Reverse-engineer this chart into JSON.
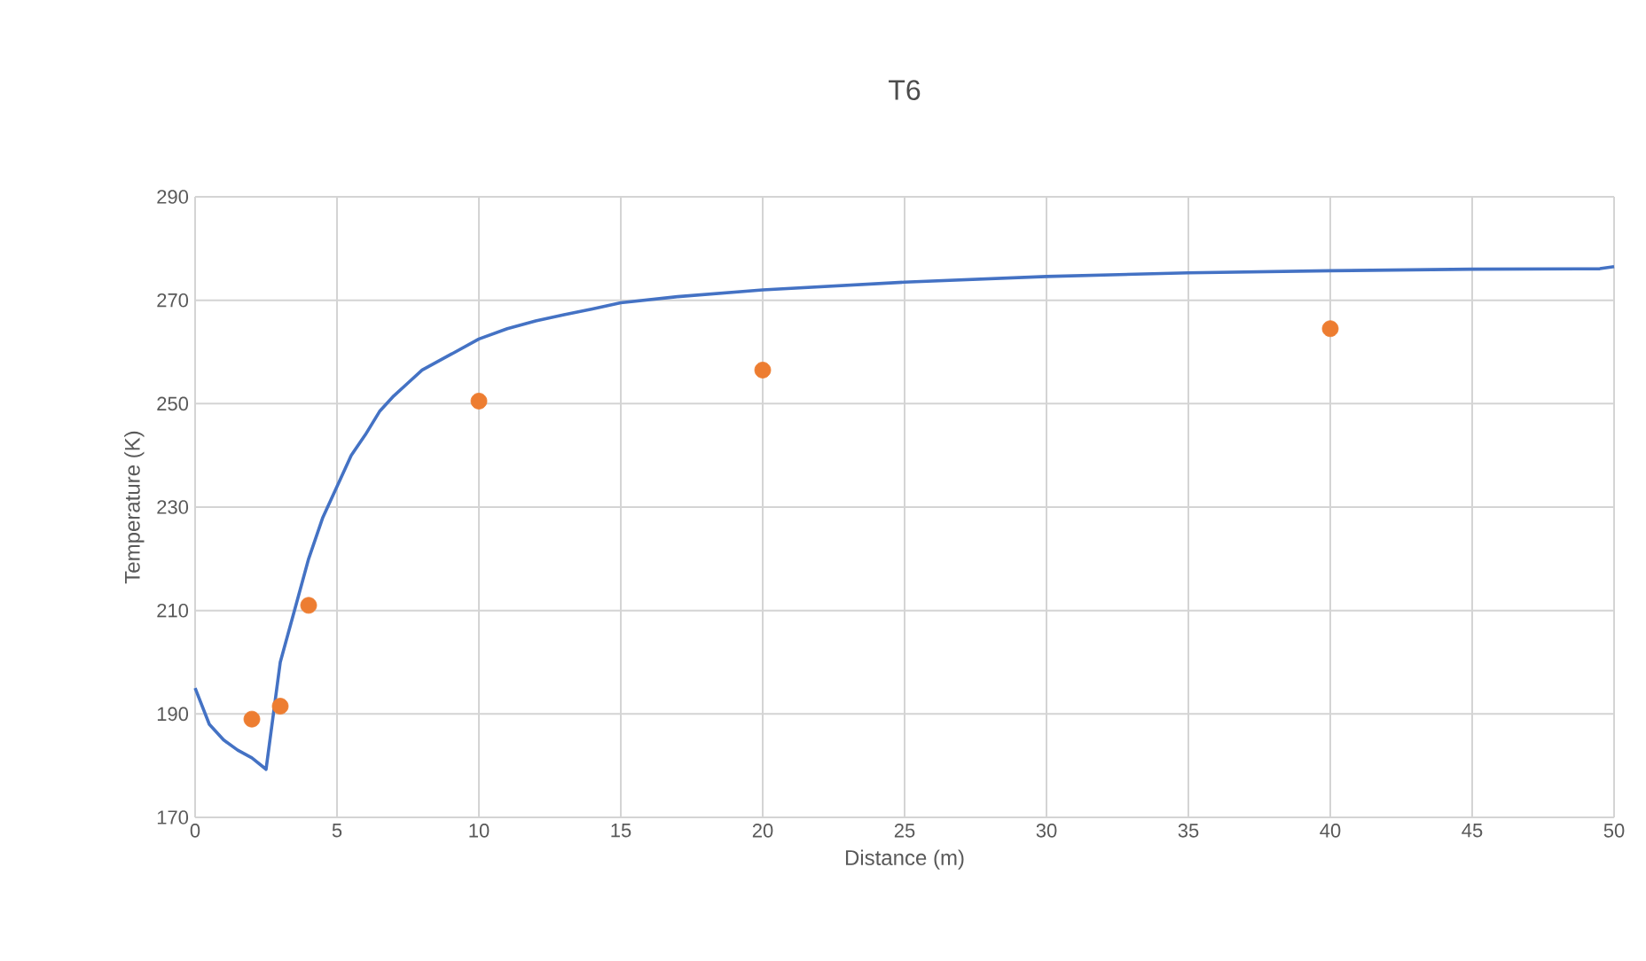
{
  "chart_data": {
    "type": "line",
    "title": "T6",
    "xlabel": "Distance (m)",
    "ylabel": "Temperature (K)",
    "xlim": [
      0,
      50
    ],
    "xticks": [
      0,
      5,
      10,
      15,
      20,
      25,
      30,
      35,
      40,
      45,
      50
    ],
    "ylim": [
      170,
      290
    ],
    "yticks": [
      170,
      190,
      210,
      230,
      250,
      270,
      290
    ],
    "grid": true,
    "series": [
      {
        "color": "#4472c4",
        "marker": "none",
        "x": [
          0,
          0.5,
          1,
          1.5,
          2,
          2.5,
          3,
          3.5,
          4,
          4.5,
          5,
          5.5,
          6,
          6.5,
          7,
          7.5,
          8,
          9,
          10,
          11,
          12,
          13,
          14,
          15,
          17,
          20,
          25,
          30,
          35,
          40,
          45,
          49.5,
          50
        ],
        "values": [
          195,
          188,
          185,
          183,
          181.5,
          179.3,
          200,
          210,
          220,
          228,
          234,
          240,
          244,
          248.5,
          251.5,
          254,
          256.5,
          259.5,
          262.5,
          264.5,
          266,
          267.2,
          268.3,
          269.5,
          270.7,
          272,
          273.5,
          274.6,
          275.3,
          275.7,
          276,
          276.1,
          276.5
        ]
      },
      {
        "type": "scatter",
        "color": "#ed7d31",
        "marker": "circle",
        "x": [
          2,
          3,
          4,
          10,
          20,
          40
        ],
        "values": [
          189,
          191.5,
          211,
          250.5,
          256.5,
          264.5
        ]
      }
    ]
  }
}
